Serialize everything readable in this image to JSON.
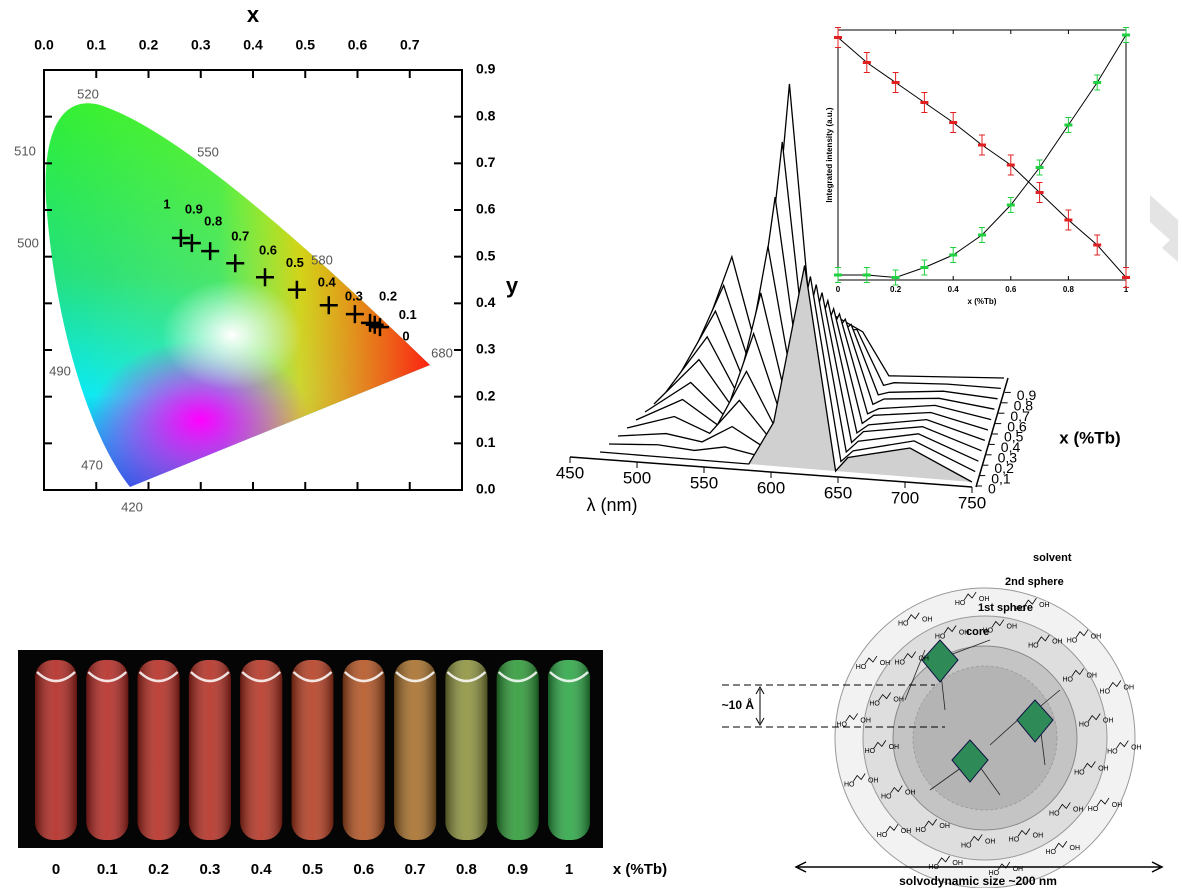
{
  "chart_data": [
    {
      "type": "scatter",
      "x_label": "x",
      "y_label": "y",
      "xlim": [
        0,
        0.8
      ],
      "ylim": [
        0,
        0.9
      ],
      "xticks": [
        {
          "value": 0,
          "label": "0.0"
        },
        0.1,
        0.2,
        0.3,
        0.4,
        0.5,
        0.6,
        0.7
      ],
      "yticks": [
        {
          "value": 0,
          "label": "0.0"
        },
        0.1,
        0.2,
        0.3,
        0.4,
        0.5,
        0.6,
        0.7,
        0.8,
        0.9
      ],
      "x": [
        0.262,
        0.283,
        0.318,
        0.366,
        0.423,
        0.484,
        0.545,
        0.595,
        0.624,
        0.633,
        0.643
      ],
      "values": [
        0.54,
        0.529,
        0.512,
        0.486,
        0.456,
        0.429,
        0.396,
        0.377,
        0.358,
        0.354,
        0.349
      ],
      "point_labels": [
        "1",
        "0.9",
        "0.8",
        "0.7",
        "0.6",
        "0.5",
        "0.4",
        "0.3",
        "0.2",
        "0.1",
        "0"
      ],
      "color": "#000000",
      "locus_labels": [
        520,
        550,
        510,
        500,
        580,
        490,
        680,
        470,
        420
      ]
    },
    {
      "type": "waterfall",
      "x_label": "λ (nm)",
      "z_label": "x (%Tb)",
      "xlim": [
        450,
        750
      ],
      "xticks": [
        450,
        500,
        550,
        600,
        650,
        700,
        750
      ],
      "zlim": [
        0,
        1
      ],
      "zticks": [
        0,
        {
          "value": 0.1,
          "label": "0,1"
        },
        {
          "value": 0.2,
          "label": "0,2"
        },
        {
          "value": 0.3,
          "label": "0,3"
        },
        {
          "value": 0.4,
          "label": "0,4"
        },
        {
          "value": 0.5,
          "label": "0,5"
        },
        {
          "value": 0.6,
          "label": "0,6"
        },
        {
          "value": 0.7,
          "label": "0,7"
        },
        {
          "value": 0.8,
          "label": "0,8"
        },
        {
          "value": 0.9,
          "label": "0,9"
        }
      ],
      "x": [
        450,
        490,
        520,
        545,
        570,
        590,
        615,
        640,
        650,
        700,
        750
      ],
      "z": [
        0,
        0.1,
        0.2,
        0.3,
        0.4,
        0.5,
        0.6,
        0.7,
        0.8,
        0.9,
        1
      ],
      "color": "#000000",
      "front_fill": "#d0d0d0",
      "series": [
        {
          "values": [
            0,
            0,
            0,
            0,
            0,
            15,
            70,
            0,
            5,
            10,
            0
          ]
        },
        {
          "values": [
            0,
            1,
            0,
            2,
            0,
            14,
            63,
            0,
            4,
            9,
            0
          ]
        },
        {
          "values": [
            0,
            2,
            0,
            6,
            0,
            13,
            57,
            0,
            4,
            8,
            0
          ]
        },
        {
          "values": [
            0,
            5,
            0,
            12,
            0,
            13,
            51,
            0,
            4,
            7,
            0
          ]
        },
        {
          "values": [
            0,
            8,
            0,
            19,
            0,
            13,
            45,
            0,
            3,
            6,
            0
          ]
        },
        {
          "values": [
            0,
            11,
            0,
            29,
            0,
            13,
            39,
            0,
            3,
            5,
            0
          ]
        },
        {
          "values": [
            0,
            16,
            0,
            40,
            0,
            14,
            34,
            0,
            2,
            4,
            0
          ]
        },
        {
          "values": [
            0,
            21,
            0,
            53,
            0,
            15,
            29,
            0,
            2,
            3,
            0
          ]
        },
        {
          "values": [
            0,
            27,
            0,
            67,
            0,
            16,
            24,
            0,
            1,
            2,
            0
          ]
        },
        {
          "values": [
            0,
            33,
            0,
            83,
            0,
            18,
            19,
            0,
            1,
            1,
            0
          ]
        },
        {
          "values": [
            0,
            40,
            0,
            100,
            0,
            20,
            15,
            0,
            0,
            0,
            0
          ]
        }
      ]
    },
    {
      "type": "scatter",
      "x_label": "x (%Tb)",
      "y_label": "Integrated intensity (a.u.)",
      "xlim": [
        0,
        1
      ],
      "ylim": [
        0,
        1
      ],
      "xticks": [
        0,
        0.2,
        0.4,
        0.6,
        0.8,
        1
      ],
      "x": [
        0,
        0.1,
        0.2,
        0.3,
        0.4,
        0.5,
        0.6,
        0.7,
        0.8,
        0.9,
        1
      ],
      "fit_color": "#000000",
      "series": [
        {
          "color": "#e02020",
          "values": [
            0.97,
            0.87,
            0.79,
            0.71,
            0.63,
            0.54,
            0.46,
            0.35,
            0.24,
            0.14,
            0.01
          ],
          "errors": [
            0.04,
            0.04,
            0.04,
            0.04,
            0.04,
            0.04,
            0.04,
            0.04,
            0.04,
            0.04,
            0.04
          ]
        },
        {
          "color": "#20d040",
          "values": [
            0.02,
            0.02,
            0.01,
            0.05,
            0.1,
            0.18,
            0.3,
            0.45,
            0.62,
            0.79,
            0.98
          ],
          "errors": [
            0.03,
            0.03,
            0.03,
            0.03,
            0.03,
            0.03,
            0.03,
            0.03,
            0.03,
            0.03,
            0.03
          ]
        }
      ]
    }
  ],
  "photo": {
    "labels": [
      "0",
      "0.1",
      "0.2",
      "0.3",
      "0.4",
      "0.5",
      "0.6",
      "0.7",
      "0.8",
      "0.9",
      "1"
    ],
    "colors": [
      "#c42820",
      "#c82a24",
      "#c92d22",
      "#c83022",
      "#c83522",
      "#c84020",
      "#c85a22",
      "#b8782a",
      "#9aa040",
      "#2faa3a",
      "#2eb84a"
    ],
    "axis_label": "x (%Tb)"
  },
  "diagram": {
    "outer": "solvent",
    "second": "2nd sphere",
    "first": "1st sphere",
    "core": "core",
    "distance": "~10 Å",
    "size": "solvodynamic size ~200 nm",
    "ligand": [
      "HO",
      "OH"
    ]
  }
}
